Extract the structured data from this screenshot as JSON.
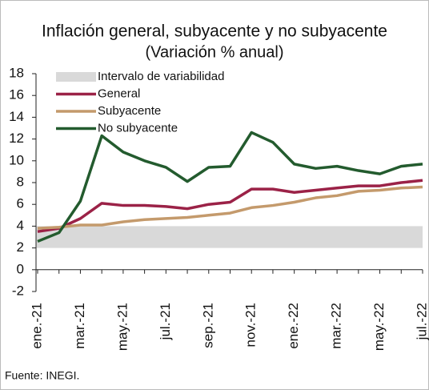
{
  "chart_data": {
    "type": "line",
    "title": "Inflación general, subyacente y no subyacente",
    "subtitle": "(Variación % anual)",
    "categories": [
      "ene.-21",
      null,
      "mar.-21",
      null,
      "may.-21",
      null,
      "jul.-21",
      null,
      "sep.-21",
      null,
      "nov.-21",
      null,
      "ene.-22",
      null,
      "mar.-22",
      null,
      "may.-22",
      null,
      "jul.-22"
    ],
    "band": {
      "name": "Intervalo de variabilidad",
      "color": "#d9d9d9",
      "range": [
        2,
        4
      ]
    },
    "series": [
      {
        "name": "General",
        "color": "#9b2247",
        "values": [
          3.5,
          3.8,
          4.7,
          6.1,
          5.9,
          5.9,
          5.8,
          5.6,
          6.0,
          6.2,
          7.4,
          7.4,
          7.1,
          7.3,
          7.5,
          7.7,
          7.7,
          8.0,
          8.2
        ]
      },
      {
        "name": "Subyacente",
        "color": "#c49a6c",
        "values": [
          3.8,
          3.9,
          4.1,
          4.1,
          4.4,
          4.6,
          4.7,
          4.8,
          5.0,
          5.2,
          5.7,
          5.9,
          6.2,
          6.6,
          6.8,
          7.2,
          7.3,
          7.5,
          7.6
        ]
      },
      {
        "name": "No subyacente",
        "color": "#235b2e",
        "values": [
          2.6,
          3.4,
          6.3,
          12.3,
          10.8,
          10.0,
          9.4,
          8.1,
          9.4,
          9.5,
          12.6,
          11.7,
          9.7,
          9.3,
          9.5,
          9.1,
          8.8,
          9.5,
          9.7
        ]
      }
    ],
    "ylim": [
      -2,
      18
    ],
    "yticks": [
      -2,
      0,
      2,
      4,
      6,
      8,
      10,
      12,
      14,
      16,
      18
    ],
    "legend": "upper left",
    "source": "Fuente: INEGI."
  }
}
